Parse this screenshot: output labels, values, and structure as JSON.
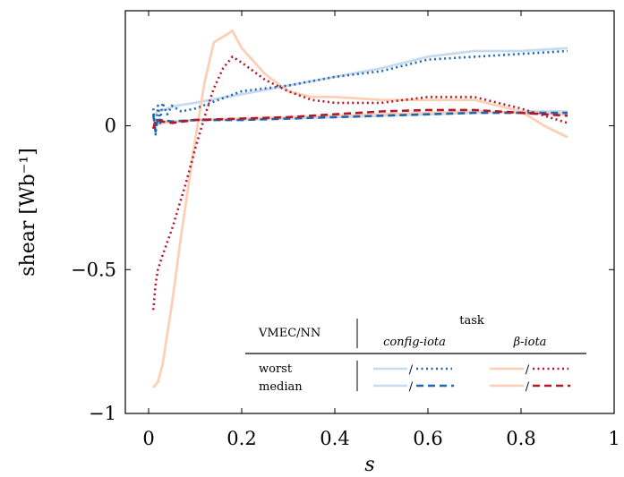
{
  "chart_data": {
    "type": "line",
    "xlabel": "s",
    "ylabel": "shear [Wb⁻¹]",
    "xlim": [
      -0.05,
      1.0
    ],
    "ylim": [
      -1.0,
      0.4
    ],
    "x_ticks": [
      0,
      0.2,
      0.4,
      0.6,
      0.8,
      1
    ],
    "x_tick_labels": [
      "0",
      "0.2",
      "0.4",
      "0.6",
      "0.8",
      "1"
    ],
    "y_ticks": [
      0,
      -0.5,
      -1
    ],
    "y_tick_labels": [
      "0",
      "−0.5",
      "−1"
    ],
    "grid": false,
    "legend": {
      "placement": "bottom-right",
      "row_header": "VMEC/NN",
      "group_header": "task",
      "columns": [
        "config-iota",
        "β-iota"
      ],
      "rows": [
        "worst",
        "median"
      ],
      "separator": "/"
    },
    "colors": {
      "config_vmec": "#c6dbef",
      "config_nn": "#2166ac",
      "beta_vmec": "#fdd0b6",
      "beta_nn": "#b2182b"
    },
    "series": [
      {
        "task": "config-iota",
        "case": "worst",
        "source": "VMEC",
        "x": [
          0.01,
          0.02,
          0.04,
          0.06,
          0.1,
          0.2,
          0.3,
          0.4,
          0.5,
          0.6,
          0.7,
          0.8,
          0.9
        ],
        "y": [
          0.03,
          0.05,
          0.06,
          0.07,
          0.08,
          0.11,
          0.14,
          0.17,
          0.2,
          0.24,
          0.26,
          0.26,
          0.27
        ]
      },
      {
        "task": "config-iota",
        "case": "worst",
        "source": "NN",
        "x": [
          0.01,
          0.015,
          0.02,
          0.025,
          0.03,
          0.04,
          0.05,
          0.07,
          0.1,
          0.15,
          0.2,
          0.3,
          0.4,
          0.5,
          0.6,
          0.7,
          0.8,
          0.9
        ],
        "y": [
          0.06,
          -0.03,
          0.07,
          0.02,
          0.08,
          0.04,
          0.07,
          0.05,
          0.06,
          0.09,
          0.12,
          0.14,
          0.17,
          0.19,
          0.23,
          0.24,
          0.25,
          0.26
        ]
      },
      {
        "task": "config-iota",
        "case": "median",
        "source": "VMEC",
        "x": [
          0.01,
          0.03,
          0.05,
          0.1,
          0.2,
          0.3,
          0.4,
          0.5,
          0.6,
          0.7,
          0.8,
          0.9
        ],
        "y": [
          0.0,
          0.01,
          0.015,
          0.02,
          0.022,
          0.025,
          0.03,
          0.035,
          0.04,
          0.045,
          0.05,
          0.05
        ]
      },
      {
        "task": "config-iota",
        "case": "median",
        "source": "NN",
        "x": [
          0.01,
          0.015,
          0.02,
          0.025,
          0.03,
          0.05,
          0.1,
          0.2,
          0.3,
          0.4,
          0.5,
          0.6,
          0.7,
          0.8,
          0.9
        ],
        "y": [
          0.04,
          -0.02,
          0.03,
          0.01,
          0.02,
          0.015,
          0.02,
          0.02,
          0.025,
          0.03,
          0.035,
          0.04,
          0.045,
          0.045,
          0.045
        ]
      },
      {
        "task": "β-iota",
        "case": "worst",
        "source": "VMEC",
        "x": [
          0.01,
          0.02,
          0.03,
          0.05,
          0.07,
          0.1,
          0.12,
          0.14,
          0.18,
          0.2,
          0.25,
          0.3,
          0.35,
          0.4,
          0.5,
          0.6,
          0.7,
          0.8,
          0.85,
          0.9
        ],
        "y": [
          -0.91,
          -0.89,
          -0.83,
          -0.62,
          -0.38,
          -0.05,
          0.15,
          0.29,
          0.33,
          0.27,
          0.18,
          0.12,
          0.1,
          0.1,
          0.09,
          0.09,
          0.09,
          0.05,
          0.0,
          -0.04
        ]
      },
      {
        "task": "β-iota",
        "case": "worst",
        "source": "NN",
        "x": [
          0.01,
          0.015,
          0.02,
          0.03,
          0.05,
          0.08,
          0.1,
          0.12,
          0.14,
          0.16,
          0.18,
          0.2,
          0.25,
          0.3,
          0.35,
          0.4,
          0.5,
          0.6,
          0.7,
          0.8,
          0.9
        ],
        "y": [
          -0.64,
          -0.55,
          -0.5,
          -0.45,
          -0.36,
          -0.2,
          -0.08,
          0.03,
          0.13,
          0.2,
          0.24,
          0.22,
          0.16,
          0.12,
          0.09,
          0.08,
          0.08,
          0.1,
          0.1,
          0.06,
          0.01
        ]
      },
      {
        "task": "β-iota",
        "case": "median",
        "source": "VMEC",
        "x": [
          0.01,
          0.03,
          0.05,
          0.1,
          0.2,
          0.3,
          0.4,
          0.5,
          0.6,
          0.7,
          0.8,
          0.9
        ],
        "y": [
          0.0,
          0.01,
          0.015,
          0.02,
          0.025,
          0.03,
          0.035,
          0.04,
          0.045,
          0.05,
          0.045,
          0.04
        ]
      },
      {
        "task": "β-iota",
        "case": "median",
        "source": "NN",
        "x": [
          0.01,
          0.015,
          0.02,
          0.03,
          0.05,
          0.1,
          0.2,
          0.3,
          0.4,
          0.5,
          0.6,
          0.7,
          0.8,
          0.9
        ],
        "y": [
          -0.01,
          0.02,
          0.02,
          0.015,
          0.01,
          0.02,
          0.025,
          0.03,
          0.04,
          0.05,
          0.055,
          0.055,
          0.045,
          0.035
        ]
      }
    ]
  }
}
